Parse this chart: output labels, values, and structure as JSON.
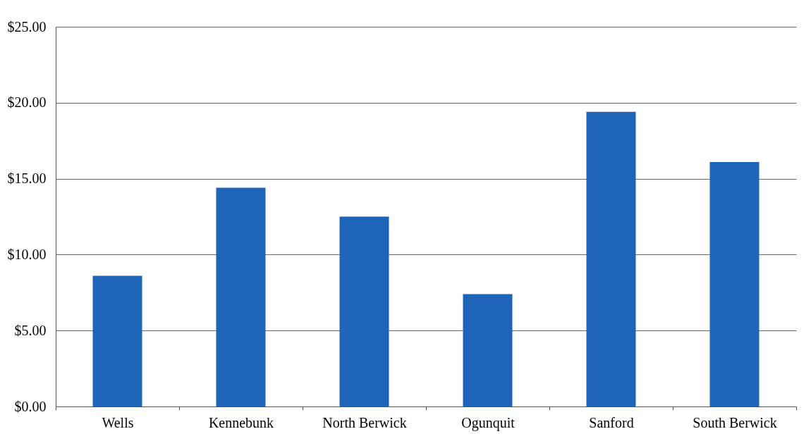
{
  "chart_data": {
    "type": "bar",
    "categories": [
      "Wells",
      "Kennebunk",
      "North Berwick",
      "Ogunquit",
      "Sanford",
      "South Berwick"
    ],
    "values": [
      8.6,
      14.4,
      12.5,
      7.4,
      19.4,
      16.1
    ],
    "color": "#1e64b9",
    "ylim": [
      0,
      25
    ],
    "yticks": [
      {
        "value": 0,
        "label": "$0.00"
      },
      {
        "value": 5,
        "label": "$5.00"
      },
      {
        "value": 10,
        "label": "$10.00"
      },
      {
        "value": 15,
        "label": "$15.00"
      },
      {
        "value": 20,
        "label": "$20.00"
      },
      {
        "value": 25,
        "label": "$25.00"
      }
    ],
    "grid": "y"
  }
}
